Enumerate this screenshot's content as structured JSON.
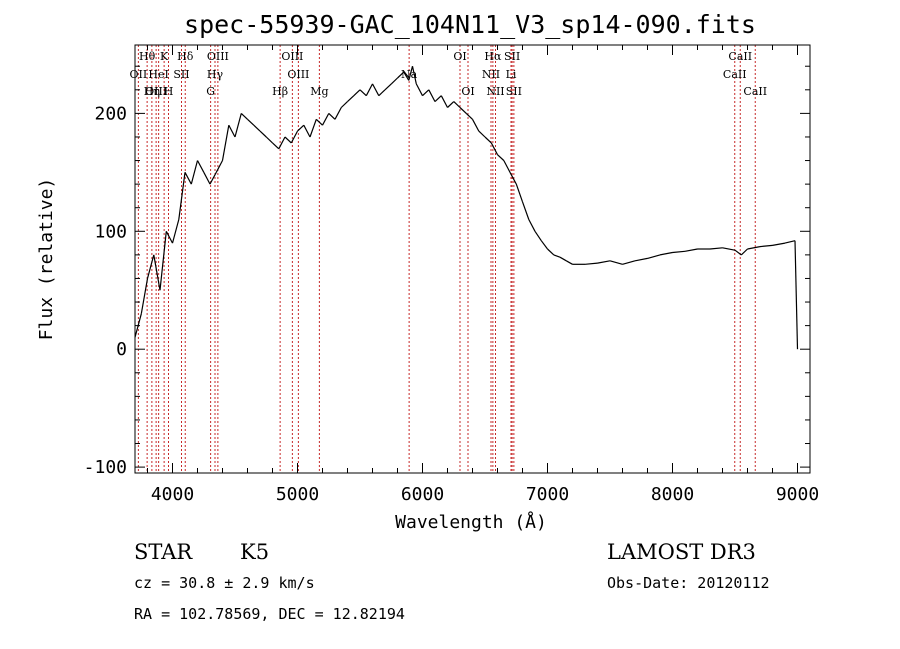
{
  "chart_data": {
    "type": "line",
    "title": "spec-55939-GAC_104N11_V3_sp14-090.fits",
    "xlabel": "Wavelength (Å)",
    "ylabel": "Flux (relative)",
    "xlim": [
      3700,
      9100
    ],
    "ylim": [
      -105,
      258
    ],
    "xticks": [
      4000,
      5000,
      6000,
      7000,
      8000,
      9000
    ],
    "yticks": [
      -100,
      0,
      100,
      200
    ],
    "grid": false,
    "series": [
      {
        "name": "spectrum",
        "x": [
          3700,
          3750,
          3800,
          3850,
          3900,
          3950,
          4000,
          4050,
          4100,
          4150,
          4200,
          4250,
          4300,
          4350,
          4400,
          4450,
          4500,
          4550,
          4600,
          4650,
          4700,
          4750,
          4800,
          4850,
          4900,
          4950,
          5000,
          5050,
          5100,
          5150,
          5200,
          5250,
          5300,
          5350,
          5400,
          5450,
          5500,
          5550,
          5600,
          5650,
          5700,
          5750,
          5800,
          5850,
          5890,
          5920,
          5950,
          6000,
          6050,
          6100,
          6150,
          6200,
          6250,
          6300,
          6350,
          6400,
          6450,
          6500,
          6550,
          6600,
          6650,
          6700,
          6750,
          6800,
          6850,
          6900,
          6950,
          7000,
          7050,
          7100,
          7150,
          7200,
          7300,
          7400,
          7500,
          7600,
          7700,
          7800,
          7900,
          8000,
          8100,
          8200,
          8300,
          8400,
          8500,
          8550,
          8600,
          8700,
          8800,
          8900,
          8980,
          9000
        ],
        "y": [
          10,
          30,
          60,
          80,
          50,
          100,
          90,
          110,
          150,
          140,
          160,
          150,
          140,
          150,
          160,
          190,
          180,
          200,
          195,
          190,
          185,
          180,
          175,
          170,
          180,
          175,
          185,
          190,
          180,
          195,
          190,
          200,
          195,
          205,
          210,
          215,
          220,
          215,
          225,
          215,
          220,
          225,
          230,
          235,
          228,
          240,
          225,
          215,
          220,
          210,
          215,
          205,
          210,
          205,
          200,
          195,
          185,
          180,
          175,
          165,
          160,
          150,
          140,
          125,
          110,
          100,
          92,
          85,
          80,
          78,
          75,
          72,
          72,
          73,
          75,
          72,
          75,
          77,
          80,
          82,
          83,
          85,
          85,
          86,
          84,
          80,
          85,
          87,
          88,
          90,
          92,
          0
        ]
      }
    ],
    "spectral_lines": [
      {
        "name": "Hθ",
        "wavelength": 3797,
        "tier": 0
      },
      {
        "name": "K",
        "wavelength": 3933,
        "tier": 0
      },
      {
        "name": "Hδ",
        "wavelength": 4102,
        "tier": 0
      },
      {
        "name": "OIII",
        "wavelength": 4363,
        "tier": 0
      },
      {
        "name": "OIII",
        "wavelength": 4959,
        "tier": 0
      },
      {
        "name": "OI",
        "wavelength": 6300,
        "tier": 0
      },
      {
        "name": "Hα",
        "wavelength": 6563,
        "tier": 0
      },
      {
        "name": "SII",
        "wavelength": 6717,
        "tier": 0
      },
      {
        "name": "CaII",
        "wavelength": 8542,
        "tier": 0
      },
      {
        "name": "OII",
        "wavelength": 3727,
        "tier": 1
      },
      {
        "name": "HeI",
        "wavelength": 3889,
        "tier": 1
      },
      {
        "name": "SII",
        "wavelength": 4072,
        "tier": 1
      },
      {
        "name": "Hγ",
        "wavelength": 4340,
        "tier": 1
      },
      {
        "name": "OIII",
        "wavelength": 5007,
        "tier": 1
      },
      {
        "name": "Na",
        "wavelength": 5893,
        "tier": 1
      },
      {
        "name": "NII",
        "wavelength": 6548,
        "tier": 1
      },
      {
        "name": "Li",
        "wavelength": 6708,
        "tier": 1
      },
      {
        "name": "CaII",
        "wavelength": 8498,
        "tier": 1
      },
      {
        "name": "OIII",
        "wavelength": 3869,
        "tier": 2
      },
      {
        "name": "Hη",
        "wavelength": 3835,
        "tier": 2
      },
      {
        "name": "H",
        "wavelength": 3968,
        "tier": 2
      },
      {
        "name": "G",
        "wavelength": 4305,
        "tier": 2
      },
      {
        "name": "Hβ",
        "wavelength": 4861,
        "tier": 2
      },
      {
        "name": "Mg",
        "wavelength": 5175,
        "tier": 2
      },
      {
        "name": "OI",
        "wavelength": 6364,
        "tier": 2
      },
      {
        "name": "NII",
        "wavelength": 6584,
        "tier": 2
      },
      {
        "name": "SII",
        "wavelength": 6731,
        "tier": 2
      },
      {
        "name": "CaII",
        "wavelength": 8662,
        "tier": 2
      }
    ]
  },
  "info": {
    "class_label": "STAR",
    "subclass_label": "K5",
    "survey_label": "LAMOST DR3",
    "redshift_label": "cz = 30.8 ± 2.9 km/s",
    "obs_date_label": "Obs-Date: 20120112",
    "coords_label": "RA = 102.78569, DEC =  12.82194"
  }
}
